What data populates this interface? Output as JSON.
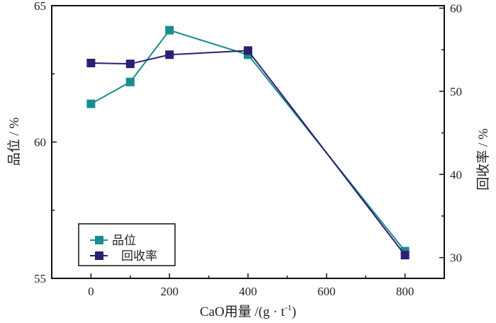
{
  "chart_data": {
    "type": "line",
    "title": "",
    "xlabel": "CaO用量 /(g · t",
    "xlabel_sup": "-1",
    "xlabel_close": ")",
    "ylabel_left": "品位 / %",
    "ylabel_right": "回收率 / %",
    "x": [
      0,
      100,
      200,
      400,
      800
    ],
    "xlim": [
      -100,
      900
    ],
    "ylim_left": [
      55,
      65
    ],
    "ylim_right": [
      27.5,
      60.3
    ],
    "x_ticks": [
      0,
      200,
      400,
      600,
      800
    ],
    "x_tick_labels": [
      "0",
      "200",
      "400",
      "600",
      "800"
    ],
    "y_left_ticks": [
      55,
      60,
      65
    ],
    "y_left_tick_labels": [
      "55",
      "60",
      "65"
    ],
    "y_right_ticks": [
      30,
      40,
      50,
      60
    ],
    "y_right_tick_labels": [
      "30",
      "40",
      "50",
      "60"
    ],
    "grid": false,
    "legend_position": "bottom-left",
    "series": [
      {
        "name": "品位",
        "axis": "left",
        "color": "#1a8c8c",
        "values": [
          61.4,
          62.2,
          64.1,
          63.2,
          56.0
        ]
      },
      {
        "name": "回收率",
        "axis": "right",
        "color": "#2a1f70",
        "values": [
          53.4,
          53.3,
          54.4,
          54.9,
          30.3
        ]
      }
    ]
  }
}
